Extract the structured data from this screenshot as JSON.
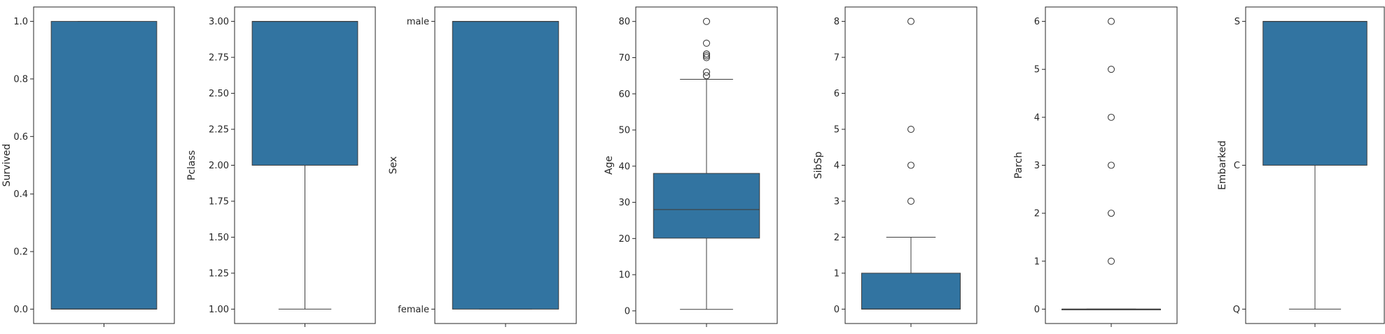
{
  "chart_data": [
    {
      "type": "box",
      "ylabel": "Survived",
      "scale": "linear",
      "ylim": [
        -0.05,
        1.05
      ],
      "yticks": [
        0.0,
        0.2,
        0.4,
        0.6,
        0.8,
        1.0
      ],
      "ytick_labels": [
        "0.0",
        "0.2",
        "0.4",
        "0.6",
        "0.8",
        "1.0"
      ],
      "box": {
        "whisker_low": 0,
        "q1": 0,
        "median": 0,
        "q3": 1,
        "whisker_high": 1
      },
      "outliers": []
    },
    {
      "type": "box",
      "ylabel": "Pclass",
      "scale": "linear",
      "ylim": [
        0.9,
        3.1
      ],
      "yticks": [
        1.0,
        1.25,
        1.5,
        1.75,
        2.0,
        2.25,
        2.5,
        2.75,
        3.0
      ],
      "ytick_labels": [
        "1.00",
        "1.25",
        "1.50",
        "1.75",
        "2.00",
        "2.25",
        "2.50",
        "2.75",
        "3.00"
      ],
      "box": {
        "whisker_low": 1,
        "q1": 2,
        "median": 3,
        "q3": 3,
        "whisker_high": 3
      },
      "outliers": []
    },
    {
      "type": "box",
      "ylabel": "Sex",
      "scale": "categorical",
      "ylim": [
        -0.05,
        1.05
      ],
      "yticks": [
        0,
        1
      ],
      "ytick_labels": [
        "female",
        "male"
      ],
      "box": {
        "whisker_low": 0,
        "q1": 0,
        "median": 1,
        "q3": 1,
        "whisker_high": 1
      },
      "outliers": []
    },
    {
      "type": "box",
      "ylabel": "Age",
      "scale": "linear",
      "ylim": [
        -3.5,
        84.0
      ],
      "yticks": [
        0,
        10,
        20,
        30,
        40,
        50,
        60,
        70,
        80
      ],
      "ytick_labels": [
        "0",
        "10",
        "20",
        "30",
        "40",
        "50",
        "60",
        "70",
        "80"
      ],
      "box": {
        "whisker_low": 0.42,
        "q1": 20.1,
        "median": 28,
        "q3": 38,
        "whisker_high": 64
      },
      "outliers": [
        65,
        65,
        66,
        70,
        70.5,
        71,
        71,
        74,
        80
      ]
    },
    {
      "type": "box",
      "ylabel": "SibSp",
      "scale": "linear",
      "ylim": [
        -0.4,
        8.4
      ],
      "yticks": [
        0,
        1,
        2,
        3,
        4,
        5,
        6,
        7,
        8
      ],
      "ytick_labels": [
        "0",
        "1",
        "2",
        "3",
        "4",
        "5",
        "6",
        "7",
        "8"
      ],
      "box": {
        "whisker_low": 0,
        "q1": 0,
        "median": 0,
        "q3": 1,
        "whisker_high": 2
      },
      "outliers": [
        3,
        4,
        5,
        8
      ]
    },
    {
      "type": "box",
      "ylabel": "Parch",
      "scale": "linear",
      "ylim": [
        -0.3,
        6.3
      ],
      "yticks": [
        0,
        1,
        2,
        3,
        4,
        5,
        6
      ],
      "ytick_labels": [
        "0",
        "1",
        "2",
        "3",
        "4",
        "5",
        "6"
      ],
      "box": {
        "whisker_low": 0,
        "q1": 0,
        "median": 0,
        "q3": 0,
        "whisker_high": 0
      },
      "outliers": [
        1,
        2,
        3,
        4,
        5,
        6
      ]
    },
    {
      "type": "box",
      "ylabel": "Embarked",
      "scale": "categorical",
      "ylim": [
        -0.1,
        2.1
      ],
      "yticks": [
        0,
        1,
        2
      ],
      "ytick_labels": [
        "Q",
        "C",
        "S"
      ],
      "box": {
        "whisker_low": 0,
        "q1": 1,
        "median": 2,
        "q3": 2,
        "whisker_high": 2
      },
      "outliers": []
    }
  ],
  "colors": {
    "box_fill": "#3274a1",
    "line": "#3f3f3f",
    "axis": "#262626"
  }
}
